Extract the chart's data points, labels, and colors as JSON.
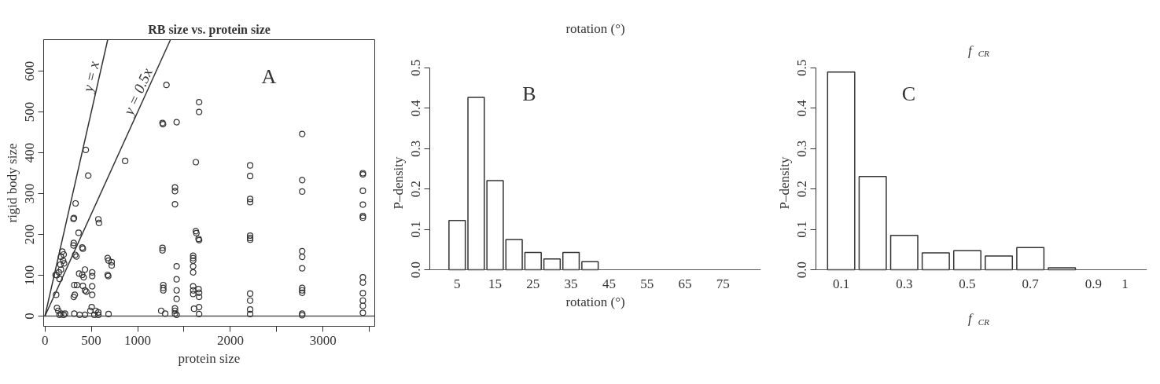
{
  "chart_data": [
    {
      "type": "scatter",
      "title": "RB size vs. protein size",
      "xlabel": "protein size",
      "ylabel": "rigid body size",
      "xlim": [
        -14,
        3557
      ],
      "ylim": [
        -25,
        677
      ],
      "xticks": [
        0,
        500,
        1000,
        {
          "value": 1500,
          "label": null
        },
        2000,
        {
          "value": 2500,
          "label": null
        },
        3000,
        {
          "value": 3500,
          "label": null
        }
      ],
      "yticks": [
        0,
        100,
        200,
        300,
        400,
        500,
        600
      ],
      "grid": false,
      "series": [
        {
          "type": "scatter",
          "color": "#333333",
          "marker": "circle",
          "x": [
            441,
            467,
            331,
            308,
            313,
            363,
            311,
            308,
            326,
            340,
            403,
            409,
            576,
            582,
            865,
            121,
            127,
            187,
            202,
            173,
            196,
            207,
            167,
            173,
            150,
            115,
            158,
            130,
            144,
            173,
            202,
            158,
            216,
            317,
            346,
            369,
            311,
            323,
            403,
            432,
            418,
            409,
            432,
            447,
            510,
            510,
            510,
            510,
            504,
            490,
            548,
            576,
            576,
            533,
            317,
            375,
            432,
            677,
            686,
            720,
            720,
            677,
            683,
            686,
            1268,
            1268,
            1268,
            1274,
            1311,
            1277,
            1277,
            1277,
            1254,
            1297,
            1421,
            1403,
            1403,
            1403,
            1421,
            1421,
            1421,
            1421,
            1403,
            1403,
            1403,
            1421,
            1628,
            1663,
            1663,
            1628,
            1634,
            1657,
            1663,
            1599,
            1599,
            1599,
            1599,
            1599,
            1599,
            1599,
            1599,
            1657,
            1663,
            1663,
            1608,
            1663,
            1663,
            2213,
            2213,
            2213,
            2213,
            2213,
            2213,
            2213,
            2213,
            2213,
            2213,
            2213,
            2775,
            2775,
            2775,
            2775,
            2775,
            2775,
            2775,
            2775,
            2775,
            2775,
            2775,
            3429,
            3429,
            3429,
            3429,
            3429,
            3429,
            3429,
            3429,
            3429,
            3429,
            3429,
            3429
          ],
          "values": [
            407,
            344,
            276,
            238,
            240,
            204,
            179,
            173,
            150,
            146,
            168,
            165,
            237,
            228,
            380,
            52,
            100,
            158,
            151,
            145,
            136,
            129,
            126,
            114,
            107,
            101,
            91,
            20,
            13,
            6,
            3,
            3,
            6,
            76,
            76,
            104,
            47,
            52,
            101,
            114,
            95,
            74,
            63,
            60,
            107,
            98,
            73,
            52,
            22,
            13,
            13,
            9,
            3,
            3,
            6,
            3,
            3,
            142,
            136,
            132,
            124,
            101,
            98,
            5,
            161,
            167,
            473,
            470,
            566,
            76,
            69,
            63,
            13,
            6,
            475,
            315,
            306,
            274,
            122,
            90,
            63,
            42,
            19,
            13,
            6,
            3,
            377,
            524,
            500,
            208,
            203,
            189,
            186,
            148,
            142,
            136,
            122,
            107,
            73,
            63,
            54,
            66,
            57,
            47,
            18,
            22,
            5,
            369,
            343,
            287,
            279,
            197,
            191,
            187,
            55,
            38,
            16,
            5,
            446,
            333,
            305,
            159,
            145,
            117,
            69,
            63,
            57,
            6,
            2,
            350,
            347,
            307,
            273,
            245,
            241,
            95,
            82,
            56,
            38,
            25,
            8
          ]
        },
        {
          "type": "line",
          "color": "#333333",
          "x": [
            0,
            677
          ],
          "values": [
            0,
            677
          ]
        },
        {
          "type": "line",
          "color": "#333333",
          "x": [
            0,
            1354
          ],
          "values": [
            0,
            677
          ]
        }
      ],
      "ref_lines": [
        {
          "axis": "y",
          "value": 0,
          "color": "#555555"
        }
      ],
      "annotations": [
        "y = x",
        "y = 0.5x",
        "A"
      ]
    },
    {
      "type": "histogram",
      "title": "rotation (°)",
      "xlabel": "rotation (°)",
      "ylabel": "P–density",
      "bins": [
        2.5,
        7.5,
        12.5,
        17.5,
        22.5,
        27.5,
        32.5,
        37.5,
        42.5,
        47.5,
        52.5,
        57.5,
        62.5,
        67.5,
        72.5,
        77.5,
        82.5
      ],
      "values": [
        0.122,
        0.427,
        0.221,
        0.075,
        0.043,
        0.027,
        0.043,
        0.02,
        0,
        0,
        0,
        0,
        0,
        0,
        0,
        0
      ],
      "color": "#ffffff",
      "xlim": [
        -2.2,
        85
      ],
      "ylim": [
        0,
        0.5
      ],
      "xticks": [
        5,
        15,
        25,
        35,
        45,
        55,
        65,
        75
      ],
      "yticks": [
        {
          "value": 0,
          "label": "0.0"
        },
        0.1,
        0.2,
        0.3,
        0.4,
        0.5
      ],
      "grid": false,
      "annotations": [
        "B"
      ]
    },
    {
      "type": "histogram",
      "title": "f$_{CR}$",
      "xlabel": "f$_{CR}$",
      "ylabel": "P–density",
      "bins": [
        0.05,
        0.15,
        0.25,
        0.35,
        0.45,
        0.55,
        0.65,
        0.75,
        0.85,
        0.95,
        1.05
      ],
      "values": [
        0.49,
        0.231,
        0.085,
        0.042,
        0.047,
        0.034,
        0.055,
        0.005,
        0,
        0
      ],
      "color": "#ffffff",
      "xlim": [
        0.02,
        1.07
      ],
      "ylim": [
        0,
        0.5
      ],
      "xticks": [
        0.1,
        0.3,
        0.5,
        0.7,
        0.9,
        1
      ],
      "yticks": [
        {
          "value": 0,
          "label": "0.0"
        },
        0.1,
        0.2,
        0.3,
        0.4,
        0.5
      ],
      "grid": false,
      "annotations": [
        "C"
      ]
    }
  ]
}
